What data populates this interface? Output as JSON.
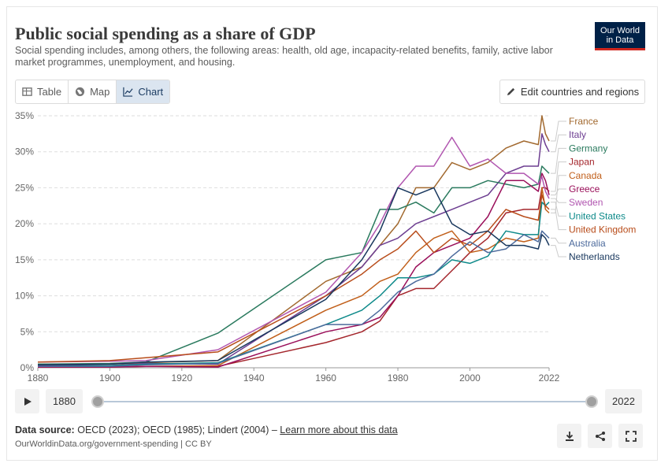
{
  "header": {
    "title": "Public social spending as a share of GDP",
    "subtitle": "Social spending includes, among others, the following areas: health, old age, incapacity-related benefits, family, active labor market programmes, unemployment, and housing.",
    "logo_line1": "Our World",
    "logo_line2": "in Data"
  },
  "tabs": [
    {
      "label": "Table",
      "icon": "table-icon"
    },
    {
      "label": "Map",
      "icon": "globe-icon"
    },
    {
      "label": "Chart",
      "icon": "line-chart-icon",
      "active": true
    }
  ],
  "edit_button": {
    "label": "Edit countries and regions",
    "icon": "pencil-icon"
  },
  "timeline": {
    "start": "1880",
    "end": "2022"
  },
  "footer": {
    "source_label": "Data source:",
    "source_text": "OECD (2023); OECD (1985); Lindert (2004) –",
    "learn_more": "Learn more about this data",
    "url": "OurWorldinData.org/government-spending | CC BY"
  },
  "chart_data": {
    "type": "line",
    "title": "Public social spending as a share of GDP",
    "xlim": [
      1880,
      2022
    ],
    "ylim": [
      0,
      35
    ],
    "x_ticks": [
      "1880",
      "1900",
      "1920",
      "1940",
      "1960",
      "1980",
      "2000",
      "2022"
    ],
    "y_ticks": [
      "0%",
      "5%",
      "10%",
      "15%",
      "20%",
      "25%",
      "30%",
      "35%"
    ],
    "grid": true,
    "legend_position": "right",
    "series": [
      {
        "name": "France",
        "color": "#a2692f",
        "x": [
          1880,
          1900,
          1910,
          1930,
          1960,
          1970,
          1975,
          1980,
          1985,
          1990,
          1995,
          2000,
          2005,
          2010,
          2015,
          2019,
          2020,
          2021,
          2022
        ],
        "y": [
          0.5,
          0.5,
          0.7,
          1.0,
          12,
          14,
          17,
          20,
          25,
          25,
          28.5,
          27.5,
          28.5,
          30.5,
          31.5,
          31,
          35,
          32.5,
          31.5
        ]
      },
      {
        "name": "Italy",
        "color": "#6d3e91",
        "x": [
          1880,
          1900,
          1910,
          1930,
          1960,
          1970,
          1975,
          1980,
          1985,
          1990,
          1995,
          2000,
          2005,
          2010,
          2015,
          2019,
          2020,
          2021,
          2022
        ],
        "y": [
          0.3,
          0.3,
          0.6,
          0.5,
          10,
          14,
          17,
          18,
          20,
          21,
          22,
          23,
          24,
          27,
          28,
          28,
          32.5,
          31,
          30
        ]
      },
      {
        "name": "Germany",
        "color": "#2a7a5e",
        "x": [
          1880,
          1900,
          1910,
          1930,
          1960,
          1970,
          1975,
          1980,
          1985,
          1990,
          1995,
          2000,
          2005,
          2010,
          2015,
          2019,
          2020,
          2021,
          2022
        ],
        "y": [
          0.5,
          0.6,
          0.8,
          4.8,
          15,
          16,
          22,
          22,
          23,
          21.5,
          25,
          25,
          26,
          25.5,
          25,
          25.5,
          28,
          27.5,
          27
        ]
      },
      {
        "name": "Japan",
        "color": "#a4262c",
        "x": [
          1880,
          1900,
          1910,
          1930,
          1960,
          1970,
          1975,
          1980,
          1985,
          1990,
          1995,
          2000,
          2005,
          2010,
          2015,
          2019,
          2020,
          2021,
          2022
        ],
        "y": [
          0.1,
          0.1,
          0.2,
          0.2,
          3.5,
          5,
          6.5,
          10,
          11,
          11,
          13.5,
          16,
          18,
          21.5,
          22,
          22,
          25,
          25,
          24.5
        ]
      },
      {
        "name": "Canada",
        "color": "#c15f1a",
        "x": [
          1880,
          1900,
          1910,
          1930,
          1960,
          1970,
          1975,
          1980,
          1985,
          1990,
          1995,
          2000,
          2005,
          2010,
          2015,
          2019,
          2020,
          2021,
          2022
        ],
        "y": [
          0.1,
          0.1,
          0.2,
          0.3,
          8,
          10,
          12,
          13,
          16,
          18,
          19,
          16,
          16.5,
          18,
          17.5,
          18,
          25,
          22,
          21.5
        ]
      },
      {
        "name": "Greece",
        "color": "#9a0f5a",
        "x": [
          1880,
          1900,
          1910,
          1930,
          1960,
          1970,
          1975,
          1980,
          1985,
          1990,
          1995,
          2000,
          2005,
          2010,
          2015,
          2019,
          2020,
          2021,
          2022
        ],
        "y": [
          0.1,
          0.1,
          0.2,
          0.1,
          5,
          6,
          7,
          10,
          14,
          16,
          17,
          18,
          21,
          26,
          26,
          24.5,
          27,
          26,
          24
        ]
      },
      {
        "name": "Sweden",
        "color": "#b156b0",
        "x": [
          1880,
          1900,
          1910,
          1930,
          1960,
          1970,
          1975,
          1980,
          1985,
          1990,
          1995,
          2000,
          2005,
          2010,
          2015,
          2019,
          2020,
          2021,
          2022
        ],
        "y": [
          0.8,
          0.9,
          1.0,
          2.5,
          10.5,
          16,
          20,
          25,
          28,
          28,
          32,
          28,
          29,
          27,
          27,
          25.5,
          26.5,
          24.5,
          23.5
        ]
      },
      {
        "name": "United States",
        "color": "#0e8a8a",
        "x": [
          1880,
          1900,
          1910,
          1930,
          1960,
          1970,
          1975,
          1980,
          1985,
          1990,
          1995,
          2000,
          2005,
          2010,
          2015,
          2019,
          2020,
          2021,
          2022
        ],
        "y": [
          0.2,
          0.3,
          0.5,
          0.7,
          6,
          8,
          10,
          12.5,
          12.5,
          13,
          15,
          14.5,
          15.5,
          19,
          18.5,
          18.5,
          23,
          22.5,
          23
        ]
      },
      {
        "name": "United Kingdom",
        "color": "#b84c1a",
        "x": [
          1880,
          1900,
          1910,
          1930,
          1960,
          1970,
          1975,
          1980,
          1985,
          1990,
          1995,
          2000,
          2005,
          2010,
          2015,
          2019,
          2020,
          2021,
          2022
        ],
        "y": [
          0.8,
          1.0,
          1.4,
          2.2,
          10,
          13,
          15,
          16.5,
          19,
          16,
          18,
          17,
          19,
          22,
          21,
          20.5,
          24,
          22.5,
          22
        ]
      },
      {
        "name": "Australia",
        "color": "#4c6a9c",
        "x": [
          1880,
          1900,
          1910,
          1930,
          1960,
          1970,
          1975,
          1980,
          1985,
          1990,
          1995,
          2000,
          2005,
          2010,
          2015,
          2019,
          2020,
          2021,
          2022
        ],
        "y": [
          0.2,
          0.2,
          0.4,
          0.6,
          6,
          6,
          8,
          10.5,
          12,
          13,
          15.5,
          17.5,
          16,
          16.5,
          18.5,
          17.5,
          19,
          18.5,
          18
        ]
      },
      {
        "name": "Netherlands",
        "color": "#18375d",
        "x": [
          1880,
          1900,
          1910,
          1930,
          1960,
          1970,
          1975,
          1980,
          1985,
          1990,
          1995,
          2000,
          2005,
          2010,
          2015,
          2019,
          2020,
          2021,
          2022
        ],
        "y": [
          0.4,
          0.5,
          0.8,
          1.0,
          9.5,
          15,
          19,
          25,
          24,
          25,
          20,
          18.5,
          19,
          17,
          17,
          16.5,
          18.5,
          18,
          17
        ]
      }
    ]
  }
}
